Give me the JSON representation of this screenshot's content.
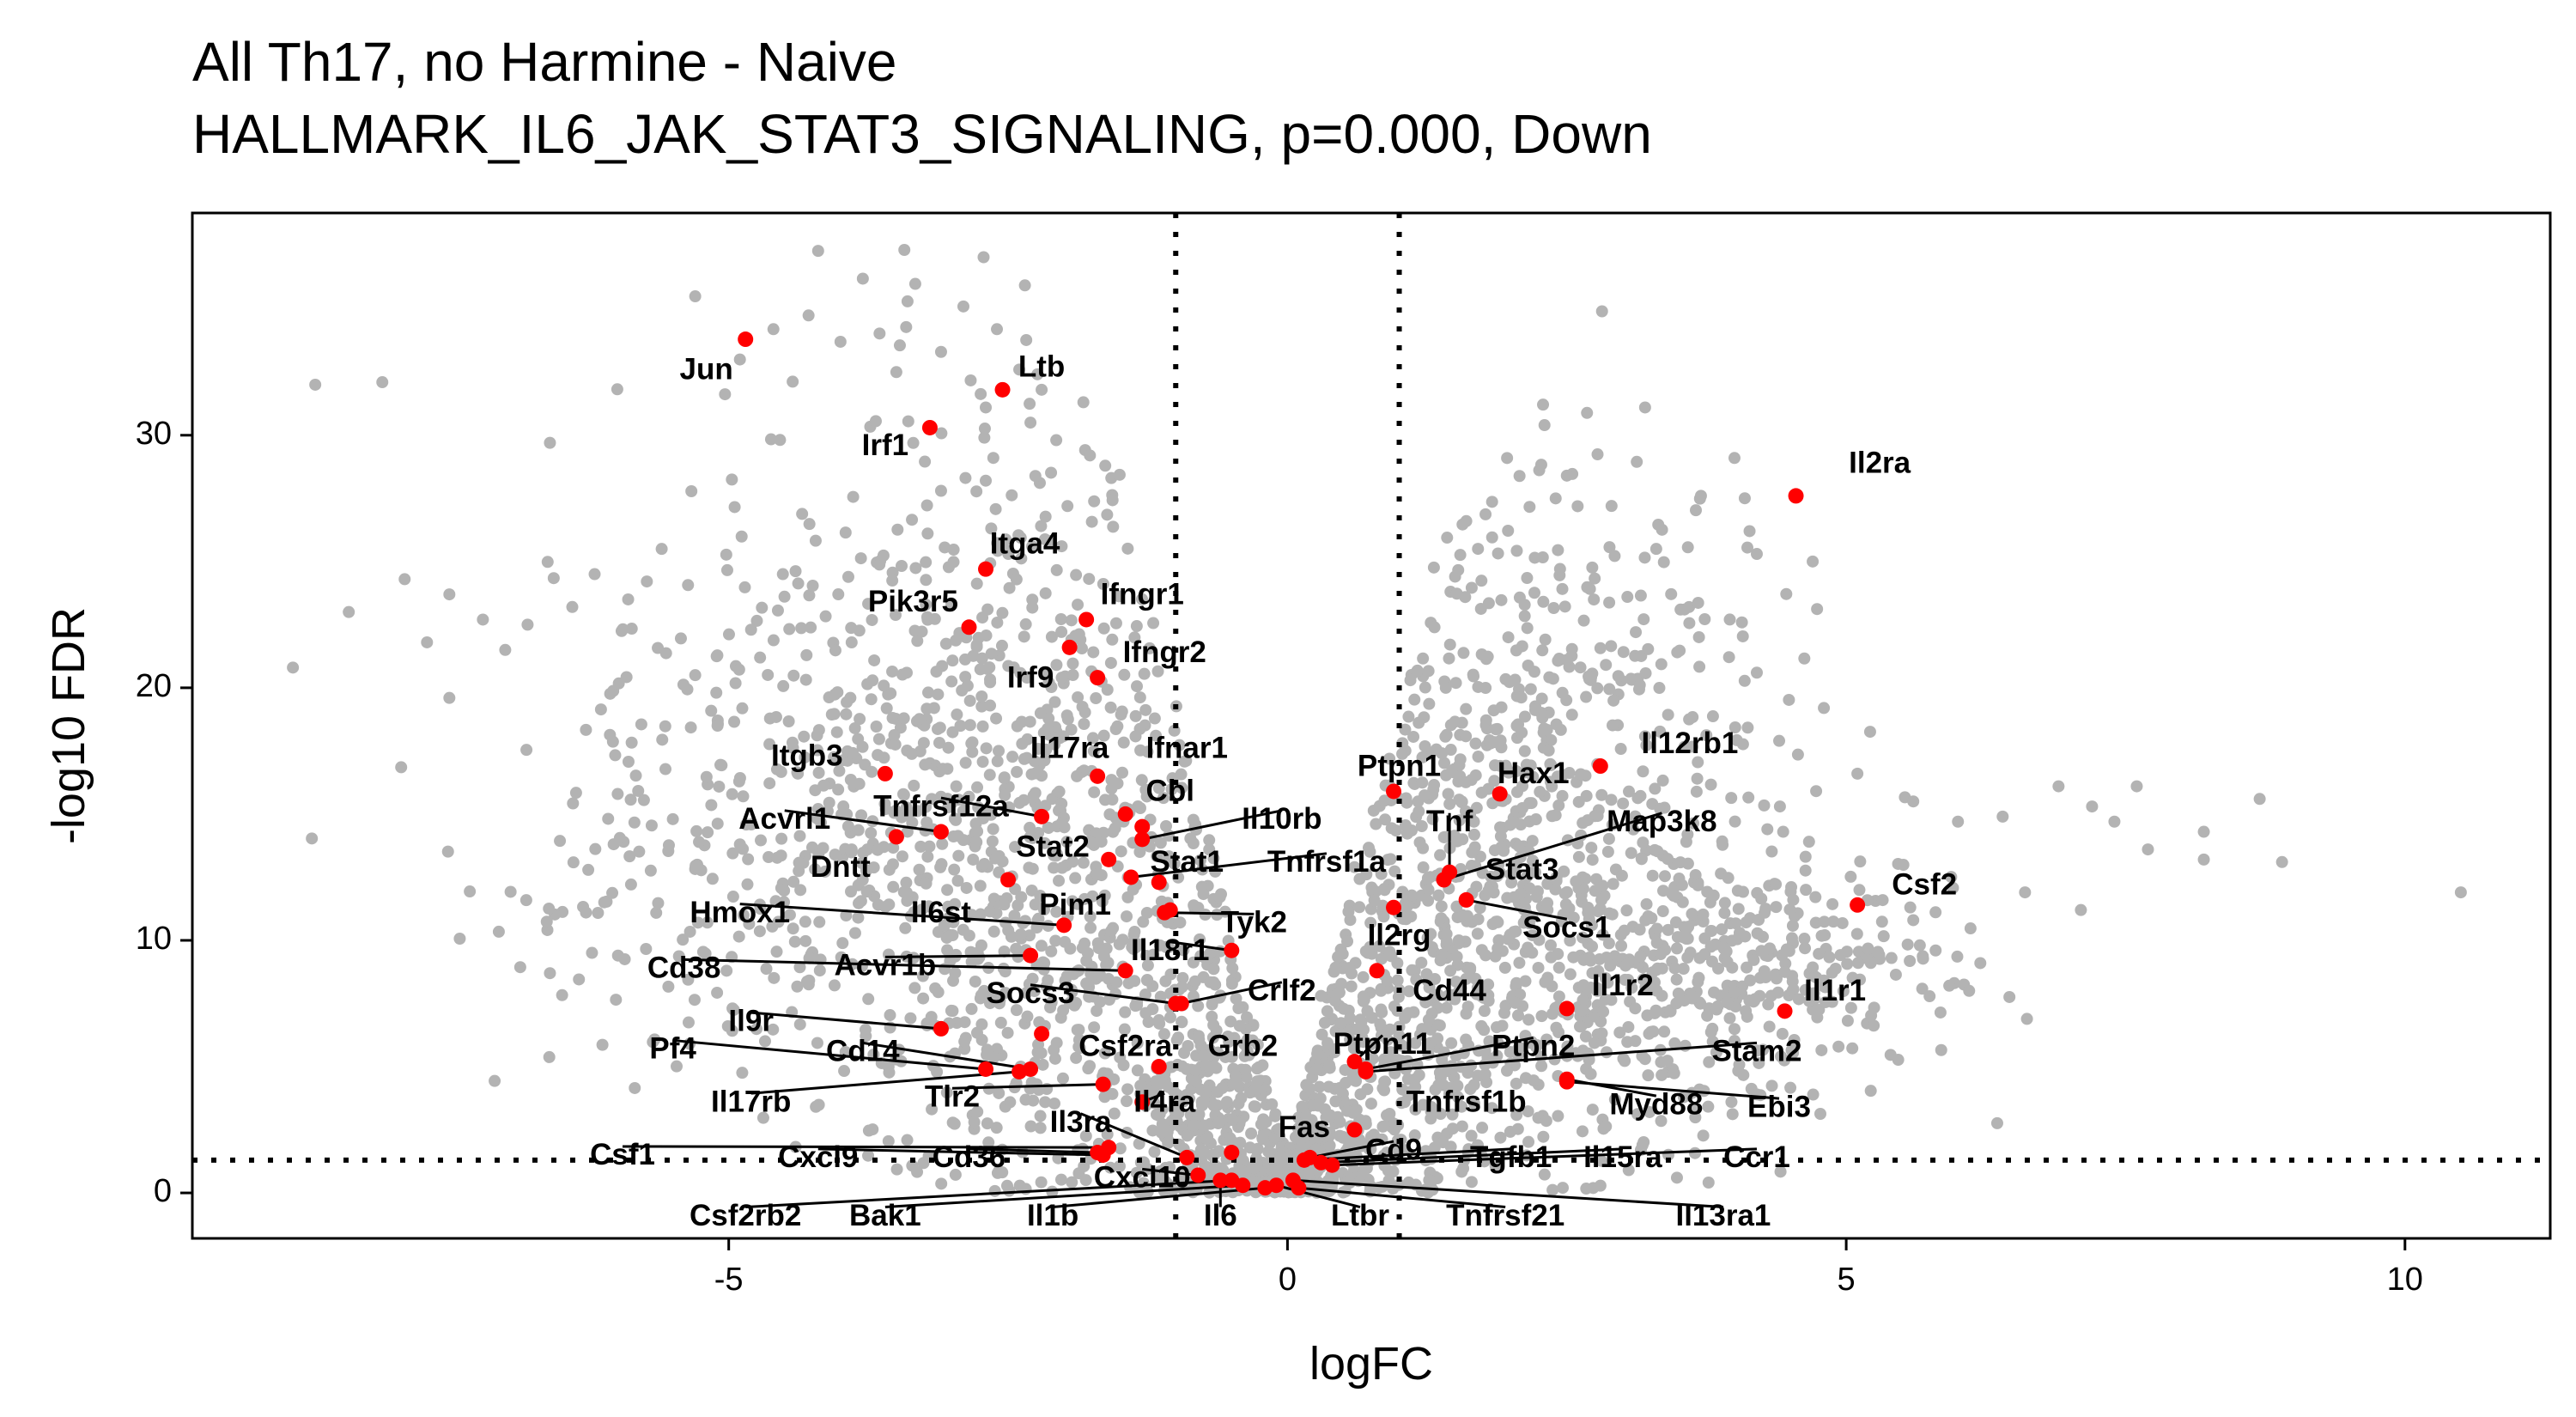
{
  "chart_data": {
    "type": "scatter",
    "title": "All Th17, no Harmine - Naive",
    "subtitle": "HALLMARK_IL6_JAK_STAT3_SIGNALING, p=0.000, Down",
    "xlabel": "logFC",
    "ylabel": "-log10 FDR",
    "xlim": [
      -9.8,
      11.3
    ],
    "ylim": [
      -1.8,
      38.8
    ],
    "x_ticks": [
      -5,
      0,
      5,
      10
    ],
    "y_ticks": [
      0,
      10,
      20,
      30
    ],
    "grid": false,
    "reference_lines": {
      "vertical": [
        -1,
        1
      ],
      "horizontal": 1.3
    },
    "colors": {
      "background_points": "#b3b3b3",
      "highlighted_points": "#ff0000",
      "lines": "#000000"
    },
    "background_points": [
      [
        -8.7,
        32
      ],
      [
        -8.1,
        32.1
      ],
      [
        -8.9,
        20.8
      ],
      [
        -8.4,
        23
      ],
      [
        -7.9,
        24.3
      ],
      [
        -7.7,
        21.8
      ],
      [
        -7.5,
        23.7
      ],
      [
        -7.5,
        19.6
      ],
      [
        -7.2,
        22.7
      ],
      [
        -7.0,
        21.5
      ],
      [
        -6.8,
        22.5
      ],
      [
        -6.6,
        29.7
      ],
      [
        -6.6,
        8.7
      ],
      [
        -6.4,
        23.2
      ],
      [
        -6.2,
        24.5
      ],
      [
        -5.9,
        23.5
      ],
      [
        -5.6,
        25.5
      ],
      [
        -5.3,
        35.5
      ],
      [
        -5.3,
        20.5
      ],
      [
        -4.9,
        33
      ],
      [
        -4.8,
        22.3
      ],
      [
        -4.6,
        34.2
      ],
      [
        -4.2,
        37.3
      ],
      [
        -4.0,
        33.7
      ],
      [
        -3.8,
        36.2
      ],
      [
        -3.5,
        32.5
      ],
      [
        -3.4,
        35.3
      ],
      [
        -3.1,
        33.3
      ],
      [
        -2.9,
        35.1
      ],
      [
        -2.7,
        31.1
      ],
      [
        -2.6,
        34.2
      ],
      [
        -2.4,
        32.6
      ],
      [
        -2.3,
        30.5
      ],
      [
        -2.2,
        31.8
      ],
      [
        -2.7,
        28.2
      ],
      [
        -3.1,
        27.8
      ],
      [
        -5.5,
        14.8
      ],
      [
        -4.9,
        13.8
      ],
      [
        -4.2,
        15.2
      ],
      [
        -3.9,
        13.6
      ],
      [
        -5.1,
        18.5
      ],
      [
        2.3,
        30.4
      ],
      [
        3.2,
        31.1
      ],
      [
        2.5,
        28.4
      ],
      [
        2.4,
        27.5
      ],
      [
        2.9,
        27.2
      ],
      [
        1.6,
        26.6
      ],
      [
        3.7,
        27.6
      ],
      [
        4.0,
        29.1
      ],
      [
        3.3,
        25.5
      ],
      [
        4.2,
        25.3
      ],
      [
        4.7,
        25.0
      ],
      [
        4.2,
        20.6
      ],
      [
        4.8,
        19.2
      ],
      [
        4.4,
        17.9
      ],
      [
        5.1,
        16.6
      ],
      [
        5.6,
        15.5
      ],
      [
        6.0,
        14.7
      ],
      [
        6.4,
        14.9
      ],
      [
        6.9,
        16.1
      ],
      [
        7.2,
        15.3
      ],
      [
        7.4,
        14.7
      ],
      [
        7.6,
        16.1
      ],
      [
        7.7,
        13.6
      ],
      [
        8.2,
        14.3
      ],
      [
        8.2,
        13.2
      ],
      [
        8.7,
        15.6
      ],
      [
        8.9,
        13.1
      ],
      [
        10.5,
        11.9
      ],
      [
        7.1,
        11.2
      ],
      [
        6.6,
        11.9
      ],
      [
        6.2,
        9.1
      ],
      [
        6.1,
        8.0
      ],
      [
        5.6,
        10.8
      ],
      [
        5.8,
        9.6
      ],
      [
        3.2,
        5.3
      ],
      [
        4.2,
        3.9
      ],
      [
        1.1,
        20.3
      ],
      [
        1.3,
        14.8
      ],
      [
        0.6,
        12.9
      ],
      [
        0.3,
        7.8
      ],
      [
        1.5,
        24.4
      ]
    ],
    "background_clusters": [
      {
        "cx": -2.4,
        "cy": 19,
        "sx": 1.4,
        "sy": 7,
        "n": 650,
        "seed": 7
      },
      {
        "cx": -2.0,
        "cy": 9,
        "sx": 1.0,
        "sy": 5,
        "n": 450,
        "seed": 11
      },
      {
        "cx": -4.0,
        "cy": 15,
        "sx": 1.3,
        "sy": 5,
        "n": 220,
        "seed": 13
      },
      {
        "cx": -5.5,
        "cy": 12,
        "sx": 1.0,
        "sy": 4,
        "n": 80,
        "seed": 17
      },
      {
        "cx": -0.7,
        "cy": 3,
        "sx": 0.4,
        "sy": 2.2,
        "n": 200,
        "seed": 19
      },
      {
        "cx": 1.8,
        "cy": 15,
        "sx": 0.9,
        "sy": 6,
        "n": 650,
        "seed": 23
      },
      {
        "cx": 0.9,
        "cy": 5,
        "sx": 0.55,
        "sy": 3.5,
        "n": 300,
        "seed": 29
      },
      {
        "cx": 3.0,
        "cy": 8,
        "sx": 1.2,
        "sy": 3.5,
        "n": 350,
        "seed": 31
      },
      {
        "cx": 4.3,
        "cy": 9.5,
        "sx": 0.8,
        "sy": 2.2,
        "n": 220,
        "seed": 37
      },
      {
        "cx": 0.0,
        "cy": 0.6,
        "sx": 0.35,
        "sy": 0.6,
        "n": 120,
        "seed": 41
      },
      {
        "cx": 3.2,
        "cy": 22,
        "sx": 0.9,
        "sy": 3,
        "n": 60,
        "seed": 43
      }
    ],
    "genes": [
      {
        "name": "Jun",
        "x": -4.85,
        "y": 33.8,
        "lx": -5.2,
        "ly": 32.6
      },
      {
        "name": "Ltb",
        "x": -2.55,
        "y": 31.8,
        "lx": -2.2,
        "ly": 32.7
      },
      {
        "name": "Irf1",
        "x": -3.2,
        "y": 30.3,
        "lx": -3.6,
        "ly": 29.6
      },
      {
        "name": "Il2ra",
        "x": 4.55,
        "y": 27.6,
        "lx": 5.3,
        "ly": 28.9
      },
      {
        "name": "Itga4",
        "x": -2.7,
        "y": 24.7,
        "lx": -2.35,
        "ly": 25.7
      },
      {
        "name": "Ifngr1",
        "x": -1.8,
        "y": 22.7,
        "lx": -1.3,
        "ly": 23.7
      },
      {
        "name": "Pik3r5",
        "x": -2.85,
        "y": 22.4,
        "lx": -3.35,
        "ly": 23.4
      },
      {
        "name": "Ifngr2",
        "x": -1.95,
        "y": 21.6,
        "lx": -1.1,
        "ly": 21.4
      },
      {
        "name": "Irf9",
        "x": -1.7,
        "y": 20.4,
        "lx": -2.3,
        "ly": 20.4
      },
      {
        "name": "Il12rb1",
        "x": 2.8,
        "y": 16.9,
        "lx": 3.6,
        "ly": 17.8
      },
      {
        "name": "Ifnar1",
        "x": -1.7,
        "y": 16.5,
        "lx": -0.9,
        "ly": 17.6
      },
      {
        "name": "Itgb3",
        "x": -3.6,
        "y": 16.6,
        "lx": -4.3,
        "ly": 17.3
      },
      {
        "name": "Il17ra",
        "x": -1.45,
        "y": 15.0,
        "lx": -1.95,
        "ly": 17.6
      },
      {
        "name": "Hax1",
        "x": 1.9,
        "y": 15.8,
        "lx": 2.2,
        "ly": 16.6
      },
      {
        "name": "Ptpn1",
        "x": 0.95,
        "y": 15.9,
        "lx": 1.0,
        "ly": 16.9
      },
      {
        "name": "Cbl",
        "x": -1.3,
        "y": 14.5,
        "lx": -1.05,
        "ly": 15.9
      },
      {
        "name": "Tnfrsf12a",
        "x": -2.2,
        "y": 14.9,
        "lx": -3.1,
        "ly": 15.3,
        "line": true
      },
      {
        "name": "Acvrl1",
        "x": -3.1,
        "y": 14.3,
        "lx": -4.5,
        "ly": 14.8,
        "line": true
      },
      {
        "name": "Il10rb",
        "x": -1.3,
        "y": 14.0,
        "lx": -0.05,
        "ly": 14.8,
        "line": true
      },
      {
        "name": "Tnf",
        "x": 1.45,
        "y": 12.7,
        "lx": 1.45,
        "ly": 14.7,
        "line": true
      },
      {
        "name": "Map3k8",
        "x": 1.4,
        "y": 12.4,
        "lx": 3.35,
        "ly": 14.7,
        "line": true
      },
      {
        "name": "Dntt",
        "x": -3.5,
        "y": 14.1,
        "lx": -4.0,
        "ly": 12.9
      },
      {
        "name": "Stat2",
        "x": -1.6,
        "y": 13.2,
        "lx": -2.1,
        "ly": 13.7
      },
      {
        "name": "Stat1",
        "x": -1.15,
        "y": 12.3,
        "lx": -0.9,
        "ly": 13.1
      },
      {
        "name": "Tnfrsf1a",
        "x": -1.4,
        "y": 12.5,
        "lx": 0.35,
        "ly": 13.1,
        "line": true
      },
      {
        "name": "Stat3",
        "x": 1.4,
        "y": 12.4,
        "lx": 2.1,
        "ly": 12.8
      },
      {
        "name": "Pim1",
        "x": -2.5,
        "y": 12.4,
        "lx": -1.9,
        "ly": 11.4
      },
      {
        "name": "Socs1",
        "x": 1.6,
        "y": 11.6,
        "lx": 2.5,
        "ly": 10.5,
        "line": true
      },
      {
        "name": "Hmox1",
        "x": -2.0,
        "y": 10.6,
        "lx": -4.9,
        "ly": 11.1,
        "line": true
      },
      {
        "name": "Il6st",
        "x": -1.05,
        "y": 11.2,
        "lx": -3.1,
        "ly": 11.1
      },
      {
        "name": "Csf2",
        "x": 5.1,
        "y": 11.4,
        "lx": 5.7,
        "ly": 12.2
      },
      {
        "name": "Tyk2",
        "x": -1.1,
        "y": 11.1,
        "lx": -0.3,
        "ly": 10.7,
        "line": true
      },
      {
        "name": "Il2rg",
        "x": 0.95,
        "y": 11.3,
        "lx": 1.0,
        "ly": 10.2
      },
      {
        "name": "Il18r1",
        "x": -0.5,
        "y": 9.6,
        "lx": -1.05,
        "ly": 9.6,
        "line": true
      },
      {
        "name": "Acvr1b",
        "x": -2.3,
        "y": 9.4,
        "lx": -3.6,
        "ly": 9.0,
        "line": true
      },
      {
        "name": "Cd38",
        "x": -1.45,
        "y": 8.8,
        "lx": -5.4,
        "ly": 8.9,
        "line": true
      },
      {
        "name": "Cd44",
        "x": 0.8,
        "y": 8.8,
        "lx": 1.45,
        "ly": 8.0
      },
      {
        "name": "Socs3",
        "x": -1.0,
        "y": 7.5,
        "lx": -2.3,
        "ly": 7.9,
        "line": true
      },
      {
        "name": "Crlf2",
        "x": -0.95,
        "y": 7.5,
        "lx": -0.05,
        "ly": 8.0,
        "line": true
      },
      {
        "name": "Il1r2",
        "x": 2.5,
        "y": 7.3,
        "lx": 3.0,
        "ly": 8.2
      },
      {
        "name": "Il1r1",
        "x": 4.45,
        "y": 7.2,
        "lx": 4.9,
        "ly": 8.0
      },
      {
        "name": "Il9r",
        "x": -3.1,
        "y": 6.5,
        "lx": -4.8,
        "ly": 6.8,
        "line": true
      },
      {
        "name": "Cd14",
        "x": -2.3,
        "y": 4.9,
        "lx": -3.8,
        "ly": 5.6,
        "line": true
      },
      {
        "name": "Csf2ra",
        "x": -2.2,
        "y": 6.3,
        "lx": -1.45,
        "ly": 5.8
      },
      {
        "name": "Grb2",
        "x": -1.15,
        "y": 5.0,
        "lx": -0.4,
        "ly": 5.8
      },
      {
        "name": "Ptpn11",
        "x": 0.6,
        "y": 5.2,
        "lx": 0.85,
        "ly": 5.9,
        "line": true
      },
      {
        "name": "Ptpn2",
        "x": 0.7,
        "y": 4.9,
        "lx": 2.2,
        "ly": 5.8,
        "line": true
      },
      {
        "name": "Stam2",
        "x": 0.7,
        "y": 4.8,
        "lx": 4.2,
        "ly": 5.6,
        "line": true
      },
      {
        "name": "Pf4",
        "x": -2.7,
        "y": 4.9,
        "lx": -5.5,
        "ly": 5.7,
        "line": true
      },
      {
        "name": "Tlr2",
        "x": -1.65,
        "y": 4.3,
        "lx": -3.0,
        "ly": 3.8,
        "line": true
      },
      {
        "name": "Il4ra",
        "x": -1.3,
        "y": 3.6,
        "lx": -1.1,
        "ly": 3.6,
        "line": true
      },
      {
        "name": "Il17rb",
        "x": -2.4,
        "y": 4.8,
        "lx": -4.8,
        "ly": 3.6,
        "line": true
      },
      {
        "name": "Tnfrsf1b",
        "x": 0.6,
        "y": 2.5,
        "lx": 1.6,
        "ly": 3.6
      },
      {
        "name": "Myd88",
        "x": 2.5,
        "y": 4.5,
        "lx": 3.3,
        "ly": 3.5,
        "line": true
      },
      {
        "name": "Ebi3",
        "x": 2.5,
        "y": 4.4,
        "lx": 4.4,
        "ly": 3.4,
        "line": true
      },
      {
        "name": "Il3ra",
        "x": -0.9,
        "y": 1.4,
        "lx": -1.85,
        "ly": 2.8,
        "line": true
      },
      {
        "name": "Fas",
        "x": -0.5,
        "y": 1.6,
        "lx": 0.15,
        "ly": 2.6
      },
      {
        "name": "Csf1",
        "x": -1.6,
        "y": 1.8,
        "lx": -5.95,
        "ly": 1.5,
        "line": true
      },
      {
        "name": "Cxcl9",
        "x": -1.65,
        "y": 1.5,
        "lx": -4.2,
        "ly": 1.4,
        "line": true
      },
      {
        "name": "Cd36",
        "x": -1.7,
        "y": 1.6,
        "lx": -2.85,
        "ly": 1.4,
        "line": true
      },
      {
        "name": "Cd9",
        "x": 0.2,
        "y": 1.4,
        "lx": 0.95,
        "ly": 1.7,
        "line": true
      },
      {
        "name": "Tgfb1",
        "x": 0.15,
        "y": 1.3,
        "lx": 2.0,
        "ly": 1.4,
        "line": true
      },
      {
        "name": "Il15ra",
        "x": 0.3,
        "y": 1.2,
        "lx": 3.0,
        "ly": 1.4,
        "line": true
      },
      {
        "name": "Ccr1",
        "x": 0.4,
        "y": 1.1,
        "lx": 4.2,
        "ly": 1.4,
        "line": true
      },
      {
        "name": "Cxcl10",
        "x": -0.8,
        "y": 0.7,
        "lx": -1.3,
        "ly": 0.6,
        "line": true
      },
      {
        "name": "Csf2rb2",
        "x": -0.5,
        "y": 0.5,
        "lx": -4.85,
        "ly": -0.9,
        "line": true
      },
      {
        "name": "Bak1",
        "x": -0.4,
        "y": 0.3,
        "lx": -3.6,
        "ly": -0.9,
        "line": true
      },
      {
        "name": "Il1b",
        "x": -0.2,
        "y": 0.2,
        "lx": -2.1,
        "ly": -0.9,
        "line": true
      },
      {
        "name": "Il6",
        "x": -0.6,
        "y": 0.5,
        "lx": -0.6,
        "ly": -0.9,
        "line": true
      },
      {
        "name": "Ltbr",
        "x": -0.1,
        "y": 0.3,
        "lx": 0.65,
        "ly": -0.9,
        "line": true
      },
      {
        "name": "Tnfrsf21",
        "x": 0.1,
        "y": 0.2,
        "lx": 1.95,
        "ly": -0.9,
        "line": true
      },
      {
        "name": "Il13ra1",
        "x": 0.05,
        "y": 0.5,
        "lx": 3.9,
        "ly": -0.9,
        "line": true
      }
    ]
  }
}
